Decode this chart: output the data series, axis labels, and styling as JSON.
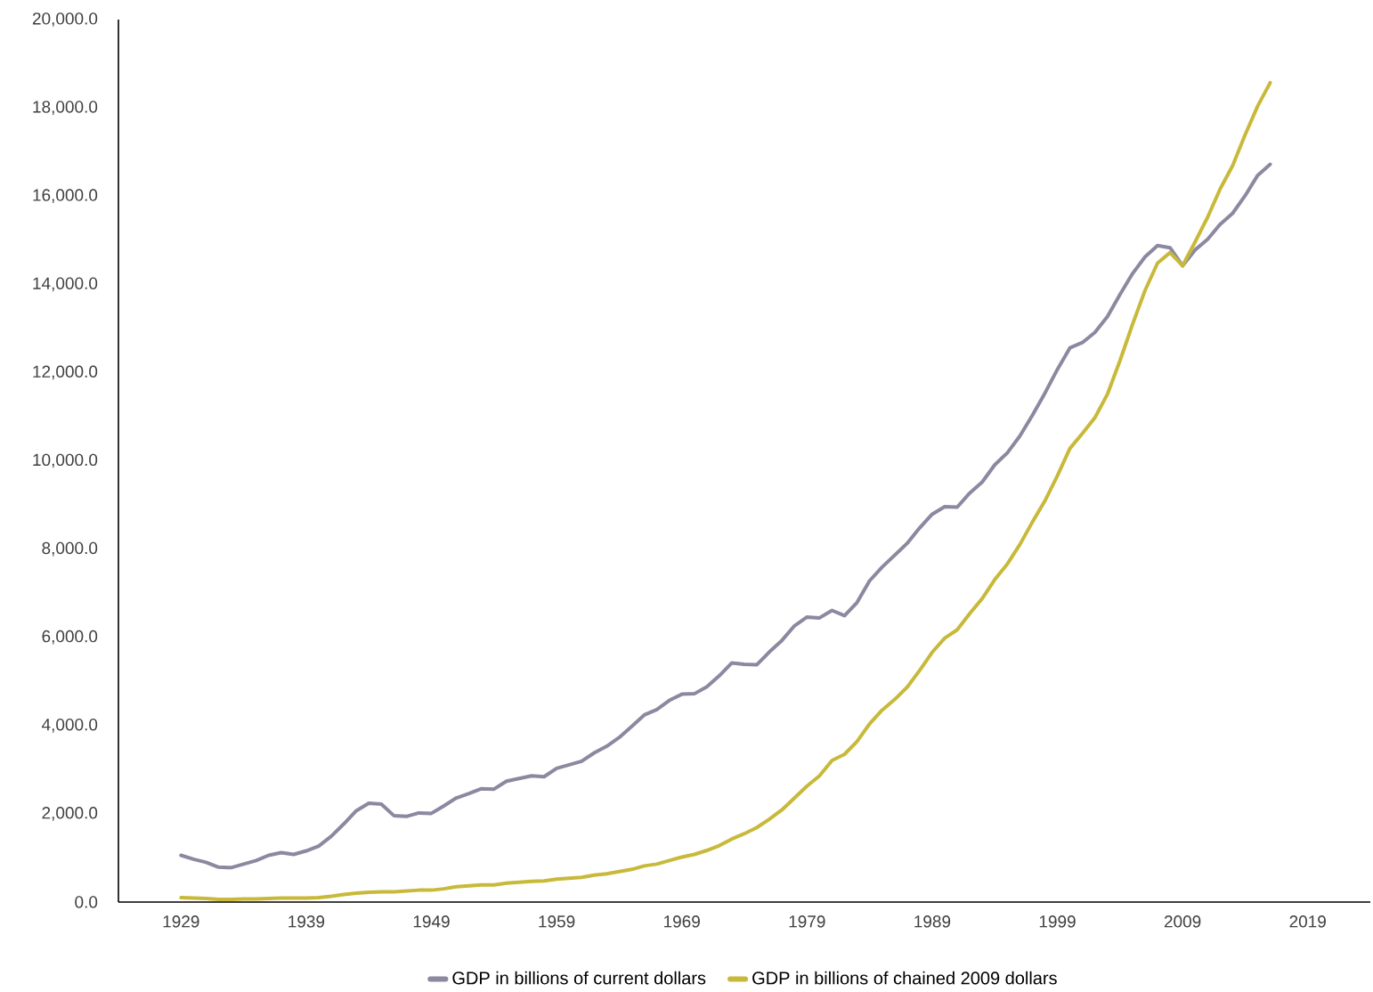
{
  "chart_data": {
    "type": "line",
    "x": [
      1929,
      1930,
      1931,
      1932,
      1933,
      1934,
      1935,
      1936,
      1937,
      1938,
      1939,
      1940,
      1941,
      1942,
      1943,
      1944,
      1945,
      1946,
      1947,
      1948,
      1949,
      1950,
      1951,
      1952,
      1953,
      1954,
      1955,
      1956,
      1957,
      1958,
      1959,
      1960,
      1961,
      1962,
      1963,
      1964,
      1965,
      1966,
      1967,
      1968,
      1969,
      1970,
      1971,
      1972,
      1973,
      1974,
      1975,
      1976,
      1977,
      1978,
      1979,
      1980,
      1981,
      1982,
      1983,
      1984,
      1985,
      1986,
      1987,
      1988,
      1989,
      1990,
      1991,
      1992,
      1993,
      1994,
      1995,
      1996,
      1997,
      1998,
      1999,
      2000,
      2001,
      2002,
      2003,
      2004,
      2005,
      2006,
      2007,
      2008,
      2009,
      2010,
      2011,
      2012,
      2013,
      2014,
      2015,
      2016
    ],
    "series": [
      {
        "name": "GDP in billions of current dollars",
        "color": "#8b88a0",
        "values": [
          1060,
          970,
          900,
          790,
          780,
          860,
          940,
          1060,
          1120,
          1080,
          1160,
          1270,
          1490,
          1770,
          2070,
          2240,
          2220,
          1960,
          1940,
          2020,
          2010,
          2180,
          2360,
          2460,
          2570,
          2560,
          2740,
          2800,
          2860,
          2840,
          3030,
          3110,
          3190,
          3380,
          3530,
          3730,
          3980,
          4240,
          4360,
          4570,
          4710,
          4720,
          4880,
          5130,
          5420,
          5390,
          5380,
          5670,
          5930,
          6260,
          6460,
          6440,
          6610,
          6490,
          6790,
          7280,
          7590,
          7860,
          8130,
          8480,
          8790,
          8960,
          8950,
          9270,
          9520,
          9910,
          10180,
          10560,
          11030,
          11530,
          12070,
          12560,
          12680,
          12910,
          13270,
          13770,
          14240,
          14620,
          14880,
          14830,
          14420,
          14780,
          15020,
          15360,
          15610,
          16010,
          16470,
          16720
        ]
      },
      {
        "name": "GDP in billions of chained 2009 dollars",
        "color": "#c8b93a",
        "values": [
          100,
          90,
          80,
          60,
          60,
          70,
          70,
          80,
          90,
          90,
          90,
          100,
          130,
          170,
          200,
          220,
          230,
          230,
          250,
          270,
          270,
          300,
          350,
          370,
          390,
          390,
          430,
          450,
          470,
          480,
          520,
          540,
          560,
          610,
          640,
          690,
          740,
          820,
          860,
          940,
          1020,
          1080,
          1170,
          1280,
          1430,
          1550,
          1690,
          1880,
          2090,
          2360,
          2630,
          2860,
          3210,
          3350,
          3640,
          4040,
          4350,
          4590,
          4870,
          5250,
          5660,
          5980,
          6170,
          6540,
          6880,
          7310,
          7660,
          8100,
          8610,
          9090,
          9660,
          10280,
          10620,
          10980,
          11510,
          12270,
          13090,
          13860,
          14480,
          14720,
          14420,
          14960,
          15520,
          16160,
          16690,
          17390,
          18040,
          18570
        ]
      }
    ],
    "xlim": [
      1924,
      2024
    ],
    "xticks": [
      1929,
      1939,
      1949,
      1959,
      1969,
      1979,
      1989,
      1999,
      2009,
      2019
    ],
    "ylim": [
      0,
      20000
    ],
    "yticks": [
      {
        "value": 0,
        "label": "0.0"
      },
      {
        "value": 2000,
        "label": "2,000.0"
      },
      {
        "value": 4000,
        "label": "4,000.0"
      },
      {
        "value": 6000,
        "label": "6,000.0"
      },
      {
        "value": 8000,
        "label": "8,000.0"
      },
      {
        "value": 10000,
        "label": "10,000.0"
      },
      {
        "value": 12000,
        "label": "12,000.0"
      },
      {
        "value": 14000,
        "label": "14,000.0"
      },
      {
        "value": 16000,
        "label": "16,000.0"
      },
      {
        "value": 18000,
        "label": "18,000.0"
      },
      {
        "value": 20000,
        "label": "20,000.0"
      }
    ],
    "legend": "bottom",
    "marker": "none",
    "line_style": "solid"
  }
}
